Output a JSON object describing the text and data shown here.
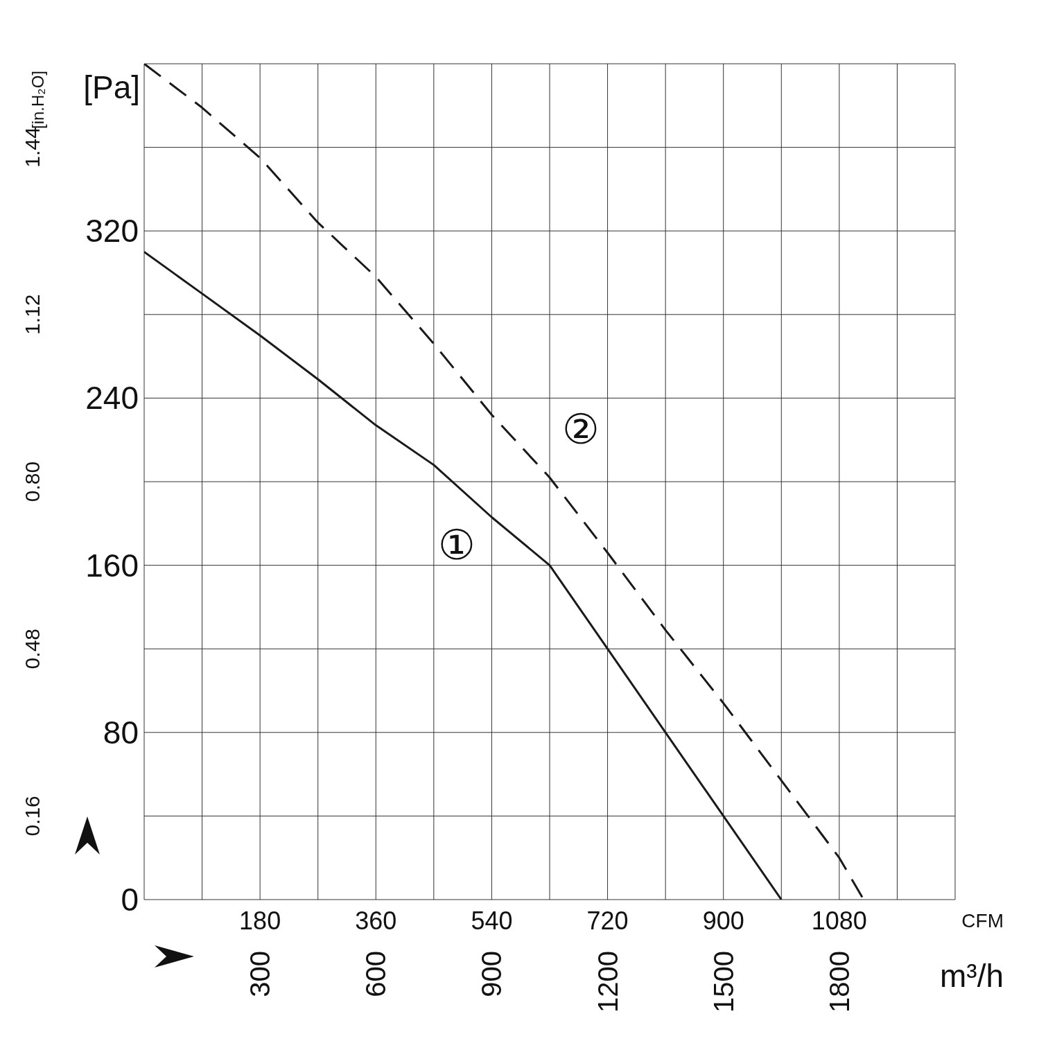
{
  "chart_data": {
    "type": "line",
    "xlabel": "m³/h",
    "x2label": "CFM",
    "ylabel": "[Pa]",
    "y2label": "[in.H₂O]",
    "xlim": [
      0,
      2100
    ],
    "xticks": [
      {
        "value": 150,
        "label": null
      },
      300,
      {
        "value": 450,
        "label": null
      },
      600,
      {
        "value": 750,
        "label": null
      },
      900,
      {
        "value": 1050,
        "label": null
      },
      1200,
      {
        "value": 1350,
        "label": null
      },
      1500,
      {
        "value": 1650,
        "label": null
      },
      1800,
      {
        "value": 1950,
        "label": null
      },
      {
        "value": 2100,
        "label": null
      }
    ],
    "x2lim": [
      0,
      1260
    ],
    "x2ticks": [
      180,
      360,
      540,
      720,
      900,
      1080
    ],
    "ylim": [
      0,
      400
    ],
    "yticks": [
      0,
      {
        "value": 40,
        "label": null
      },
      80,
      {
        "value": 120,
        "label": null
      },
      160,
      {
        "value": 200,
        "label": null
      },
      240,
      {
        "value": 280,
        "label": null
      },
      320,
      {
        "value": 360,
        "label": null
      },
      {
        "value": 400,
        "label": null
      }
    ],
    "y2lim": [
      0,
      1.6
    ],
    "y2ticks": [
      0.16,
      0.48,
      {
        "value": 0.8,
        "label": "0.80"
      },
      1.12,
      1.44
    ],
    "grid": true,
    "series": [
      {
        "name": "①",
        "color": "#1a1a1a",
        "line_style": "solid",
        "x": [
          0,
          150,
          300,
          450,
          600,
          750,
          900,
          1050,
          1200,
          1350,
          1500,
          1650
        ],
        "values": [
          310,
          290,
          270,
          249,
          227,
          208,
          183,
          160,
          120,
          80,
          40,
          0
        ]
      },
      {
        "name": "②",
        "color": "#1a1a1a",
        "line_style": "dashed",
        "x": [
          0,
          150,
          300,
          450,
          600,
          750,
          900,
          1050,
          1200,
          1350,
          1500,
          1650,
          1800,
          1863
        ],
        "values": [
          400,
          379,
          355,
          324,
          298,
          266,
          232,
          202,
          166,
          129,
          94,
          57,
          20,
          0
        ]
      }
    ]
  }
}
